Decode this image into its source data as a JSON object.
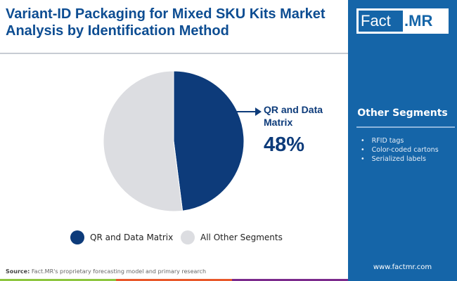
{
  "title": "Variant-ID Packaging for Mixed SKU Kits Market Analysis by Identification Method",
  "logo": {
    "part1": "Fact",
    "part2": ".MR"
  },
  "side_panel": {
    "heading": "Other Segments",
    "items": [
      "RFID tags",
      "Color-coded cartons",
      "Serialized labels"
    ],
    "url": "www.factmr.com"
  },
  "callout": {
    "label": "QR and Data Matrix",
    "value": "48%"
  },
  "source": {
    "label": "Source:",
    "text": "Fact.MR's proprietary forecasting model and primary research"
  },
  "colors": {
    "primary": "#0d3b7a",
    "other": "#dcdde1",
    "panel": "#1565a8"
  },
  "chart_data": {
    "type": "pie",
    "title": "",
    "slices": [
      {
        "name": "QR and Data Matrix",
        "value": 48,
        "color": "#0d3b7a"
      },
      {
        "name": "All Other Segments",
        "value": 52,
        "color": "#dcdde1"
      }
    ],
    "legend": "bottom"
  }
}
